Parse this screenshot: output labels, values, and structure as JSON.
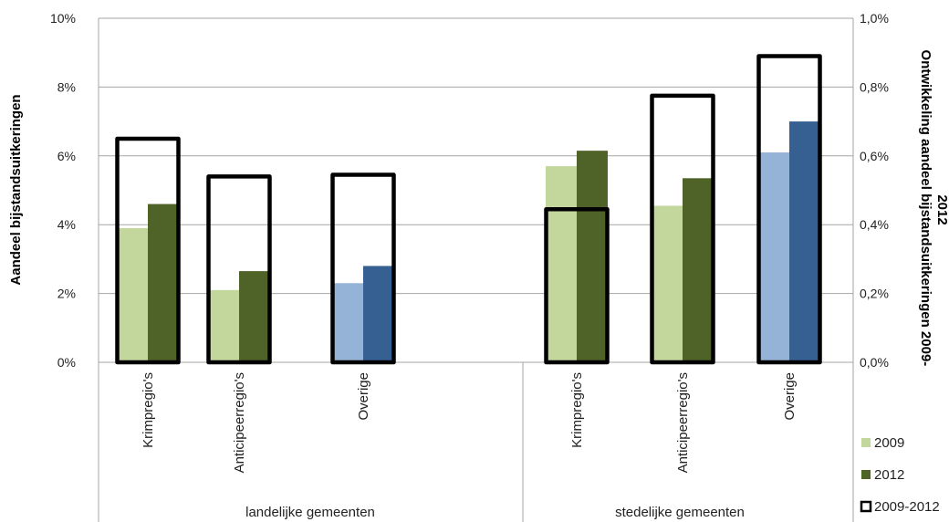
{
  "chart_data": {
    "type": "bar",
    "title": "",
    "ylabel_left": "Aandeel bijstandsuitkeringen",
    "ylabel_right": "Ontwikkeling aandeel bijstandsuitkeringen 2009-2012",
    "ylim_left": [
      0,
      10
    ],
    "ylim_right": [
      0,
      1.0
    ],
    "yticks_left": [
      "0%",
      "2%",
      "4%",
      "6%",
      "8%",
      "10%"
    ],
    "yticks_right": [
      "0,0%",
      "0,2%",
      "0,4%",
      "0,6%",
      "0,8%",
      "1,0%"
    ],
    "grid": true,
    "legend_position": "right",
    "groups": [
      {
        "label": "landelijke gemeenten",
        "categories": [
          "Krimpregio's",
          "Anticipeerregio's",
          "Overige"
        ]
      },
      {
        "label": "stedelijke gemeenten",
        "categories": [
          "Krimpregio's",
          "Anticipeerregio's",
          "Overige"
        ]
      }
    ],
    "series": [
      {
        "name": "2009",
        "axis": "left",
        "unit": "%",
        "values": [
          3.9,
          2.1,
          2.3,
          5.7,
          4.55,
          6.1
        ]
      },
      {
        "name": "2012",
        "axis": "left",
        "unit": "%",
        "values": [
          4.6,
          2.65,
          2.8,
          6.15,
          5.35,
          7.0
        ]
      },
      {
        "name": "2009-2012",
        "axis": "right",
        "unit": "%",
        "values": [
          0.65,
          0.54,
          0.545,
          0.445,
          0.775,
          0.89
        ]
      }
    ],
    "colors": {
      "2009_green": "#c3d69b",
      "2012_green": "#4f6228",
      "2009_blue": "#95b3d7",
      "2012_blue": "#366092",
      "outline": "#000000",
      "grid": "#a6a6a6"
    },
    "legend": [
      {
        "label": "2009",
        "color": "#c3d69b",
        "style": "fill"
      },
      {
        "label": "2012",
        "color": "#4f6228",
        "style": "fill"
      },
      {
        "label": "2009-2012",
        "color": "#000000",
        "style": "outline"
      }
    ]
  }
}
